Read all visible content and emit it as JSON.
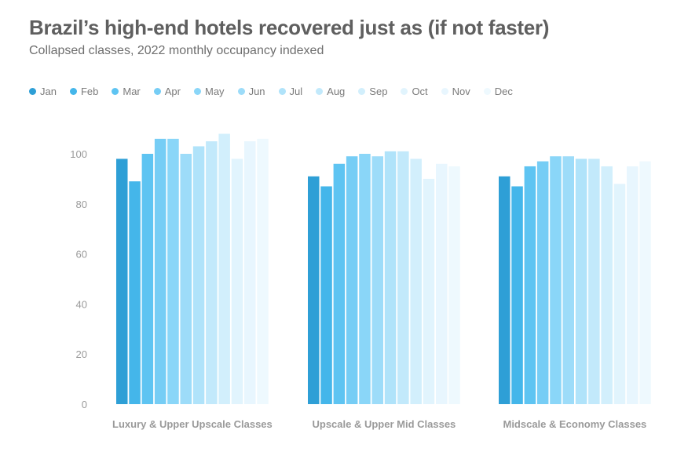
{
  "title": "Brazil’s high-end hotels recovered just as (if not faster)",
  "subtitle": "Collapsed classes, 2022 monthly occupancy indexed",
  "colors": [
    "#2e9fd6",
    "#44b6ea",
    "#5ec4f2",
    "#76cdf5",
    "#8ad6f8",
    "#9ddcf9",
    "#b0e3fa",
    "#c2e9fb",
    "#d2effc",
    "#e1f4fd",
    "#e8f6fe",
    "#eef9fe"
  ],
  "chart_data": {
    "type": "bar",
    "title": "Brazil’s high-end hotels recovered just as (if not faster)",
    "subtitle": "Collapsed classes, 2022 monthly occupancy indexed",
    "xlabel": "",
    "ylabel": "",
    "ylim": [
      0,
      110
    ],
    "yticks": [
      0,
      20,
      40,
      60,
      80,
      100
    ],
    "grid": false,
    "legend_position": "top-left",
    "categories": [
      "Luxury & Upper Upscale Classes",
      "Upscale & Upper Mid Classes",
      "Midscale & Economy Classes"
    ],
    "series": [
      {
        "name": "Jan",
        "values": [
          98,
          91,
          91
        ]
      },
      {
        "name": "Feb",
        "values": [
          89,
          87,
          87
        ]
      },
      {
        "name": "Mar",
        "values": [
          100,
          96,
          95
        ]
      },
      {
        "name": "Apr",
        "values": [
          106,
          99,
          97
        ]
      },
      {
        "name": "May",
        "values": [
          106,
          100,
          99
        ]
      },
      {
        "name": "Jun",
        "values": [
          100,
          99,
          99
        ]
      },
      {
        "name": "Jul",
        "values": [
          103,
          101,
          98
        ]
      },
      {
        "name": "Aug",
        "values": [
          105,
          101,
          98
        ]
      },
      {
        "name": "Sep",
        "values": [
          108,
          98,
          95
        ]
      },
      {
        "name": "Oct",
        "values": [
          98,
          90,
          88
        ]
      },
      {
        "name": "Nov",
        "values": [
          105,
          96,
          95
        ]
      },
      {
        "name": "Dec",
        "values": [
          106,
          95,
          97
        ]
      }
    ]
  }
}
